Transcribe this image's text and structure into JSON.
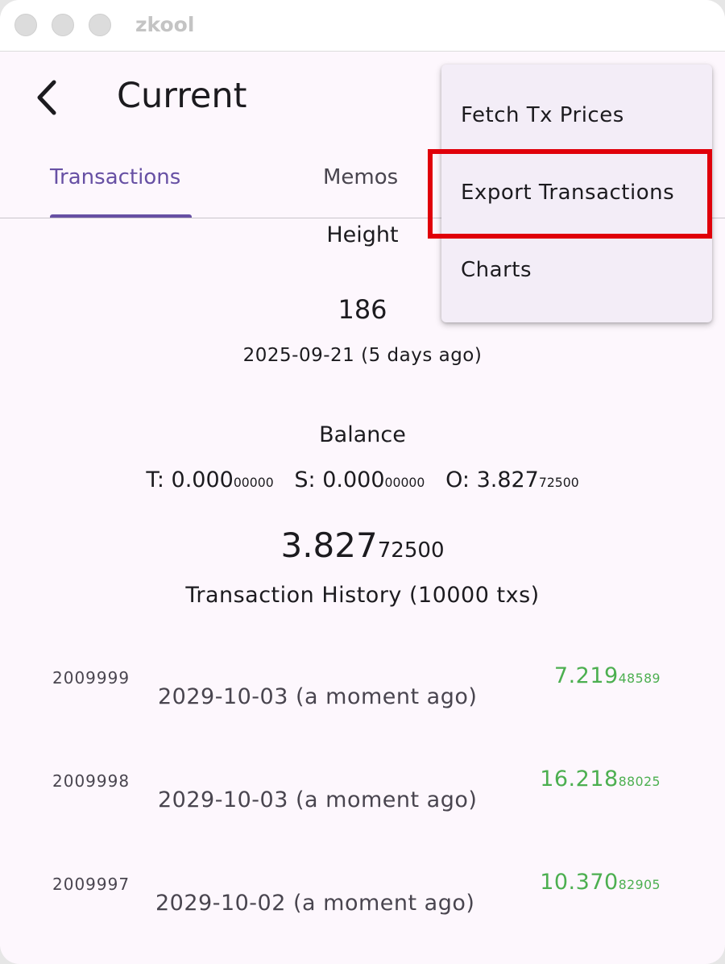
{
  "window": {
    "title": "zkool"
  },
  "header": {
    "title": "Current",
    "back_icon": "chevron-left-icon"
  },
  "tabs": [
    {
      "label": "Transactions",
      "active": true
    },
    {
      "label": "Memos",
      "active": false
    }
  ],
  "height": {
    "label": "Height",
    "value": "186",
    "date": "2025-09-21 (5 days ago)"
  },
  "balance": {
    "label": "Balance",
    "t_label": "T: ",
    "t_main": "0.000",
    "t_small": "00000",
    "s_label": "S: ",
    "s_main": "0.000",
    "s_small": "00000",
    "o_label": "O: ",
    "o_main": "3.827",
    "o_small": "72500",
    "total_main": "3.827",
    "total_small": "72500"
  },
  "history": {
    "title": "Transaction History (10000 txs)",
    "rows": [
      {
        "height": "2009999",
        "date": "2029-10-03 (a moment ago)",
        "amount_main": "7.219",
        "amount_small": "48589"
      },
      {
        "height": "2009998",
        "date": "2029-10-03 (a moment ago)",
        "amount_main": "16.218",
        "amount_small": "88025"
      },
      {
        "height": "2009997",
        "date": "2029-10-02 (a moment ago)",
        "amount_main": "10.370",
        "amount_small": "82905"
      }
    ]
  },
  "menu": {
    "items": [
      {
        "label": "Fetch Tx Prices"
      },
      {
        "label": "Export Transactions",
        "highlighted": true
      },
      {
        "label": "Charts"
      }
    ]
  },
  "colors": {
    "accent": "#6750a4",
    "positive": "#4caf50",
    "highlight_box": "#e0000a",
    "background": "#fdf7fd",
    "menu_background": "#f3edf7"
  }
}
